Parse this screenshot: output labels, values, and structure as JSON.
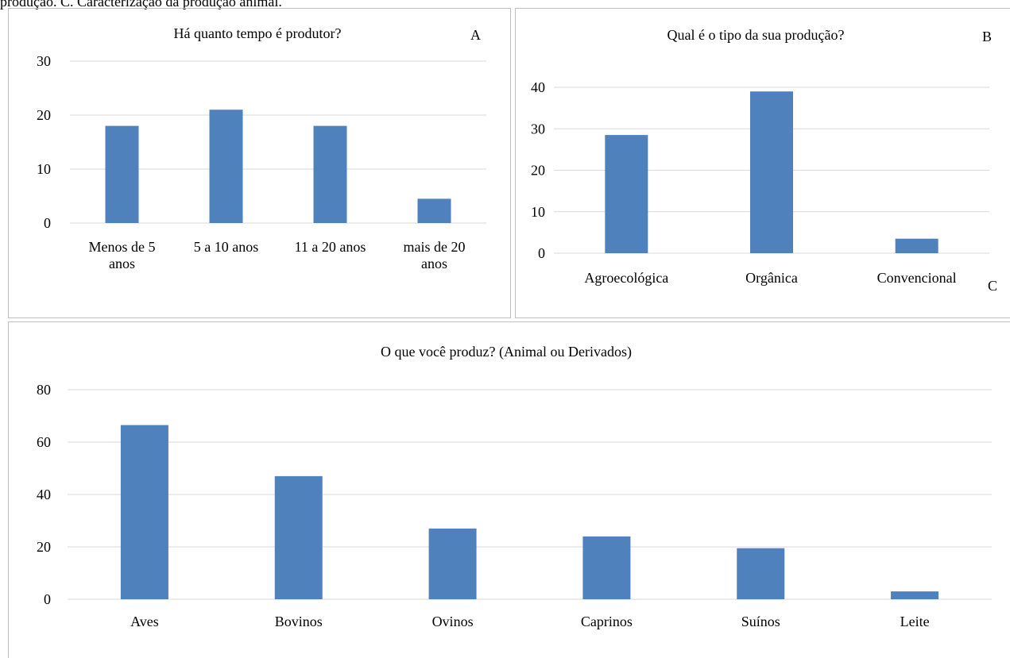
{
  "caption_fragment": "produção. C. Caracterização da produção animal.",
  "panel_labels": {
    "a": "A",
    "b": "B",
    "c": "C"
  },
  "colors": {
    "bar": "#4f81bd",
    "grid": "#d9d9d9",
    "border": "#bfbfbf"
  },
  "chart_data": [
    {
      "id": "A",
      "type": "bar",
      "title": "Há quanto tempo é produtor?",
      "xlabel": "",
      "ylabel": "",
      "categories": [
        [
          "Menos de 5",
          "anos"
        ],
        [
          "5 a 10 anos"
        ],
        [
          "11 a 20 anos"
        ],
        [
          "mais de 20",
          "anos"
        ]
      ],
      "values": [
        18,
        21,
        18,
        4.5
      ],
      "ylim": [
        0,
        30
      ],
      "yticks": [
        0,
        10,
        20,
        30
      ],
      "grid": true,
      "legend": "none"
    },
    {
      "id": "B",
      "type": "bar",
      "title": "Qual é o tipo da sua produção?",
      "xlabel": "",
      "ylabel": "",
      "categories": [
        [
          "Agroecológica"
        ],
        [
          "Orgânica"
        ],
        [
          "Convencional"
        ]
      ],
      "values": [
        28.5,
        39,
        3.5
      ],
      "ylim": [
        0,
        40
      ],
      "yticks": [
        0,
        10,
        20,
        30,
        40
      ],
      "grid": true,
      "legend": "none"
    },
    {
      "id": "C",
      "type": "bar",
      "title": "O que você produz? (Animal ou Derivados)",
      "xlabel": "",
      "ylabel": "",
      "categories": [
        [
          "Aves"
        ],
        [
          "Bovinos"
        ],
        [
          "Ovinos"
        ],
        [
          "Caprinos"
        ],
        [
          "Suínos"
        ],
        [
          "Leite"
        ]
      ],
      "values": [
        66.5,
        47,
        27,
        24,
        19.5,
        3
      ],
      "ylim": [
        0,
        80
      ],
      "yticks": [
        0,
        20,
        40,
        60,
        80
      ],
      "grid": true,
      "legend": "none"
    }
  ]
}
